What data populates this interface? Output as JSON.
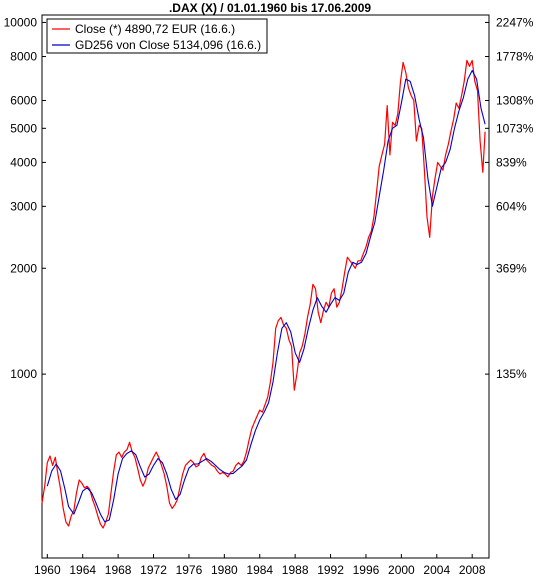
{
  "chart_data": {
    "type": "line",
    "title": ".DAX (X) / 01.01.1960 bis 17.06.2009",
    "y_scale": "log",
    "ylim": [
      300,
      10500
    ],
    "xlim": [
      1959.4,
      2009.9
    ],
    "grid": false,
    "legend_position": "top-left",
    "left_ticks": [
      {
        "value": 1000,
        "label": "1000"
      },
      {
        "value": 2000,
        "label": "2000"
      },
      {
        "value": 3000,
        "label": "3000"
      },
      {
        "value": 4000,
        "label": "4000"
      },
      {
        "value": 5000,
        "label": "5000"
      },
      {
        "value": 6000,
        "label": "6000"
      },
      {
        "value": 8000,
        "label": "8000"
      },
      {
        "value": 10000,
        "label": "10000"
      }
    ],
    "right_ticks": [
      {
        "value": 1000,
        "label": "135%"
      },
      {
        "value": 2000,
        "label": "369%"
      },
      {
        "value": 3000,
        "label": "604%"
      },
      {
        "value": 4000,
        "label": "839%"
      },
      {
        "value": 5000,
        "label": "1073%"
      },
      {
        "value": 6000,
        "label": "1308%"
      },
      {
        "value": 8000,
        "label": "1778%"
      },
      {
        "value": 10000,
        "label": "2247%"
      }
    ],
    "x_ticks": [
      {
        "value": 1960,
        "label": "1960"
      },
      {
        "value": 1964,
        "label": "1964"
      },
      {
        "value": 1968,
        "label": "1968"
      },
      {
        "value": 1972,
        "label": "1972"
      },
      {
        "value": 1976,
        "label": "1976"
      },
      {
        "value": 1980,
        "label": "1980"
      },
      {
        "value": 1984,
        "label": "1984"
      },
      {
        "value": 1988,
        "label": "1988"
      },
      {
        "value": 1992,
        "label": "1992"
      },
      {
        "value": 1996,
        "label": "1996"
      },
      {
        "value": 2000,
        "label": "2000"
      },
      {
        "value": 2004,
        "label": "2004"
      },
      {
        "value": 2008,
        "label": "2008"
      }
    ],
    "series": [
      {
        "name": "Close (*) 4890,72 EUR (16.6.)",
        "color": "#ff0000",
        "points": [
          [
            1959.4,
            430
          ],
          [
            1959.7,
            480
          ],
          [
            1960.0,
            560
          ],
          [
            1960.3,
            585
          ],
          [
            1960.6,
            550
          ],
          [
            1960.9,
            580
          ],
          [
            1961.2,
            520
          ],
          [
            1961.5,
            470
          ],
          [
            1961.8,
            415
          ],
          [
            1962.1,
            380
          ],
          [
            1962.4,
            370
          ],
          [
            1962.7,
            395
          ],
          [
            1963.0,
            410
          ],
          [
            1963.3,
            460
          ],
          [
            1963.6,
            500
          ],
          [
            1963.9,
            490
          ],
          [
            1964.2,
            475
          ],
          [
            1964.5,
            480
          ],
          [
            1964.8,
            470
          ],
          [
            1965.1,
            440
          ],
          [
            1965.4,
            420
          ],
          [
            1965.7,
            395
          ],
          [
            1966.0,
            375
          ],
          [
            1966.3,
            365
          ],
          [
            1966.6,
            380
          ],
          [
            1966.9,
            400
          ],
          [
            1967.2,
            460
          ],
          [
            1967.5,
            530
          ],
          [
            1967.8,
            590
          ],
          [
            1968.1,
            600
          ],
          [
            1968.4,
            580
          ],
          [
            1968.7,
            600
          ],
          [
            1969.0,
            610
          ],
          [
            1969.3,
            640
          ],
          [
            1969.6,
            600
          ],
          [
            1969.9,
            580
          ],
          [
            1970.2,
            540
          ],
          [
            1970.5,
            500
          ],
          [
            1970.8,
            480
          ],
          [
            1971.1,
            500
          ],
          [
            1971.4,
            540
          ],
          [
            1971.7,
            560
          ],
          [
            1972.0,
            580
          ],
          [
            1972.3,
            600
          ],
          [
            1972.6,
            580
          ],
          [
            1972.9,
            550
          ],
          [
            1973.2,
            520
          ],
          [
            1973.5,
            480
          ],
          [
            1973.8,
            430
          ],
          [
            1974.1,
            415
          ],
          [
            1974.4,
            425
          ],
          [
            1974.7,
            440
          ],
          [
            1975.0,
            480
          ],
          [
            1975.3,
            520
          ],
          [
            1975.6,
            550
          ],
          [
            1975.9,
            560
          ],
          [
            1976.2,
            570
          ],
          [
            1976.5,
            560
          ],
          [
            1976.8,
            545
          ],
          [
            1977.1,
            550
          ],
          [
            1977.4,
            580
          ],
          [
            1977.7,
            595
          ],
          [
            1978.0,
            570
          ],
          [
            1978.3,
            560
          ],
          [
            1978.6,
            550
          ],
          [
            1978.9,
            545
          ],
          [
            1979.2,
            530
          ],
          [
            1979.5,
            520
          ],
          [
            1979.8,
            525
          ],
          [
            1980.1,
            520
          ],
          [
            1980.4,
            510
          ],
          [
            1980.7,
            525
          ],
          [
            1981.0,
            530
          ],
          [
            1981.3,
            550
          ],
          [
            1981.6,
            560
          ],
          [
            1981.9,
            550
          ],
          [
            1982.2,
            565
          ],
          [
            1982.5,
            600
          ],
          [
            1982.8,
            650
          ],
          [
            1983.1,
            700
          ],
          [
            1983.4,
            730
          ],
          [
            1983.7,
            760
          ],
          [
            1984.0,
            790
          ],
          [
            1984.3,
            780
          ],
          [
            1984.6,
            820
          ],
          [
            1984.9,
            860
          ],
          [
            1985.2,
            950
          ],
          [
            1985.5,
            1080
          ],
          [
            1985.8,
            1350
          ],
          [
            1986.1,
            1420
          ],
          [
            1986.4,
            1450
          ],
          [
            1986.7,
            1380
          ],
          [
            1987.0,
            1350
          ],
          [
            1987.3,
            1250
          ],
          [
            1987.6,
            1200
          ],
          [
            1987.9,
            900
          ],
          [
            1988.2,
            1000
          ],
          [
            1988.5,
            1150
          ],
          [
            1988.8,
            1200
          ],
          [
            1989.1,
            1300
          ],
          [
            1989.4,
            1450
          ],
          [
            1989.7,
            1580
          ],
          [
            1990.0,
            1800
          ],
          [
            1990.3,
            1750
          ],
          [
            1990.6,
            1500
          ],
          [
            1990.9,
            1400
          ],
          [
            1991.2,
            1520
          ],
          [
            1991.5,
            1600
          ],
          [
            1991.8,
            1550
          ],
          [
            1992.1,
            1700
          ],
          [
            1992.4,
            1750
          ],
          [
            1992.7,
            1550
          ],
          [
            1993.0,
            1600
          ],
          [
            1993.3,
            1750
          ],
          [
            1993.6,
            1950
          ],
          [
            1993.9,
            2150
          ],
          [
            1994.2,
            2100
          ],
          [
            1994.5,
            2050
          ],
          [
            1994.8,
            2000
          ],
          [
            1995.1,
            2100
          ],
          [
            1995.4,
            2100
          ],
          [
            1995.7,
            2200
          ],
          [
            1996.0,
            2300
          ],
          [
            1996.3,
            2450
          ],
          [
            1996.6,
            2550
          ],
          [
            1996.9,
            2800
          ],
          [
            1997.2,
            3300
          ],
          [
            1997.5,
            3900
          ],
          [
            1997.8,
            4200
          ],
          [
            1998.1,
            4500
          ],
          [
            1998.4,
            5800
          ],
          [
            1998.7,
            4200
          ],
          [
            1999.0,
            5200
          ],
          [
            1999.3,
            5100
          ],
          [
            1999.6,
            5500
          ],
          [
            1999.9,
            6800
          ],
          [
            2000.2,
            7700
          ],
          [
            2000.5,
            7200
          ],
          [
            2000.8,
            6500
          ],
          [
            2001.1,
            6200
          ],
          [
            2001.4,
            6000
          ],
          [
            2001.7,
            4600
          ],
          [
            2002.0,
            5100
          ],
          [
            2002.3,
            5000
          ],
          [
            2002.6,
            3800
          ],
          [
            2002.9,
            2800
          ],
          [
            2003.2,
            2450
          ],
          [
            2003.5,
            3200
          ],
          [
            2003.8,
            3600
          ],
          [
            2004.1,
            4000
          ],
          [
            2004.4,
            3900
          ],
          [
            2004.7,
            3800
          ],
          [
            2005.0,
            4200
          ],
          [
            2005.3,
            4500
          ],
          [
            2005.6,
            4900
          ],
          [
            2005.9,
            5300
          ],
          [
            2006.2,
            5900
          ],
          [
            2006.5,
            5700
          ],
          [
            2006.8,
            6200
          ],
          [
            2007.1,
            6800
          ],
          [
            2007.4,
            7800
          ],
          [
            2007.7,
            7500
          ],
          [
            2008.0,
            7800
          ],
          [
            2008.3,
            6800
          ],
          [
            2008.6,
            6400
          ],
          [
            2008.9,
            4600
          ],
          [
            2009.0,
            4300
          ],
          [
            2009.2,
            3750
          ],
          [
            2009.46,
            4890
          ]
        ]
      },
      {
        "name": "GD256 von Close 5134,096 (16.6.)",
        "color": "#0000cc",
        "points": [
          [
            1960.0,
            480
          ],
          [
            1960.5,
            530
          ],
          [
            1961.0,
            555
          ],
          [
            1961.5,
            530
          ],
          [
            1962.0,
            470
          ],
          [
            1962.4,
            420
          ],
          [
            1963.0,
            400
          ],
          [
            1963.5,
            430
          ],
          [
            1964.0,
            465
          ],
          [
            1964.5,
            475
          ],
          [
            1965.0,
            460
          ],
          [
            1965.5,
            430
          ],
          [
            1966.0,
            400
          ],
          [
            1966.5,
            380
          ],
          [
            1967.0,
            385
          ],
          [
            1967.5,
            440
          ],
          [
            1968.0,
            520
          ],
          [
            1968.5,
            575
          ],
          [
            1969.0,
            595
          ],
          [
            1969.5,
            605
          ],
          [
            1970.0,
            590
          ],
          [
            1970.5,
            545
          ],
          [
            1971.0,
            510
          ],
          [
            1971.5,
            520
          ],
          [
            1972.0,
            550
          ],
          [
            1972.5,
            575
          ],
          [
            1973.0,
            560
          ],
          [
            1973.5,
            520
          ],
          [
            1974.0,
            470
          ],
          [
            1974.5,
            440
          ],
          [
            1975.0,
            455
          ],
          [
            1975.5,
            500
          ],
          [
            1976.0,
            540
          ],
          [
            1976.5,
            555
          ],
          [
            1977.0,
            555
          ],
          [
            1977.5,
            565
          ],
          [
            1978.0,
            575
          ],
          [
            1978.5,
            565
          ],
          [
            1979.0,
            550
          ],
          [
            1979.5,
            535
          ],
          [
            1980.0,
            525
          ],
          [
            1980.5,
            520
          ],
          [
            1981.0,
            522
          ],
          [
            1981.5,
            535
          ],
          [
            1982.0,
            548
          ],
          [
            1982.5,
            570
          ],
          [
            1983.0,
            630
          ],
          [
            1983.5,
            690
          ],
          [
            1984.0,
            740
          ],
          [
            1984.5,
            780
          ],
          [
            1985.0,
            830
          ],
          [
            1985.5,
            950
          ],
          [
            1986.0,
            1150
          ],
          [
            1986.5,
            1350
          ],
          [
            1987.0,
            1400
          ],
          [
            1987.5,
            1320
          ],
          [
            1988.0,
            1150
          ],
          [
            1988.5,
            1080
          ],
          [
            1989.0,
            1180
          ],
          [
            1989.5,
            1350
          ],
          [
            1990.0,
            1520
          ],
          [
            1990.5,
            1650
          ],
          [
            1991.0,
            1560
          ],
          [
            1991.5,
            1500
          ],
          [
            1992.0,
            1580
          ],
          [
            1992.5,
            1650
          ],
          [
            1993.0,
            1620
          ],
          [
            1993.5,
            1700
          ],
          [
            1994.0,
            1950
          ],
          [
            1994.5,
            2080
          ],
          [
            1995.0,
            2050
          ],
          [
            1995.5,
            2080
          ],
          [
            1996.0,
            2200
          ],
          [
            1996.5,
            2450
          ],
          [
            1997.0,
            2700
          ],
          [
            1997.5,
            3200
          ],
          [
            1998.0,
            3800
          ],
          [
            1998.5,
            4600
          ],
          [
            1999.0,
            5000
          ],
          [
            1999.5,
            5100
          ],
          [
            2000.0,
            5900
          ],
          [
            2000.5,
            6900
          ],
          [
            2001.0,
            6800
          ],
          [
            2001.5,
            6200
          ],
          [
            2002.0,
            5300
          ],
          [
            2002.5,
            4700
          ],
          [
            2003.0,
            3600
          ],
          [
            2003.5,
            3000
          ],
          [
            2004.0,
            3400
          ],
          [
            2004.5,
            3850
          ],
          [
            2005.0,
            4000
          ],
          [
            2005.5,
            4350
          ],
          [
            2006.0,
            5000
          ],
          [
            2006.5,
            5600
          ],
          [
            2007.0,
            6100
          ],
          [
            2007.5,
            6900
          ],
          [
            2008.0,
            7300
          ],
          [
            2008.5,
            6900
          ],
          [
            2009.0,
            5700
          ],
          [
            2009.46,
            5134
          ]
        ]
      }
    ]
  }
}
